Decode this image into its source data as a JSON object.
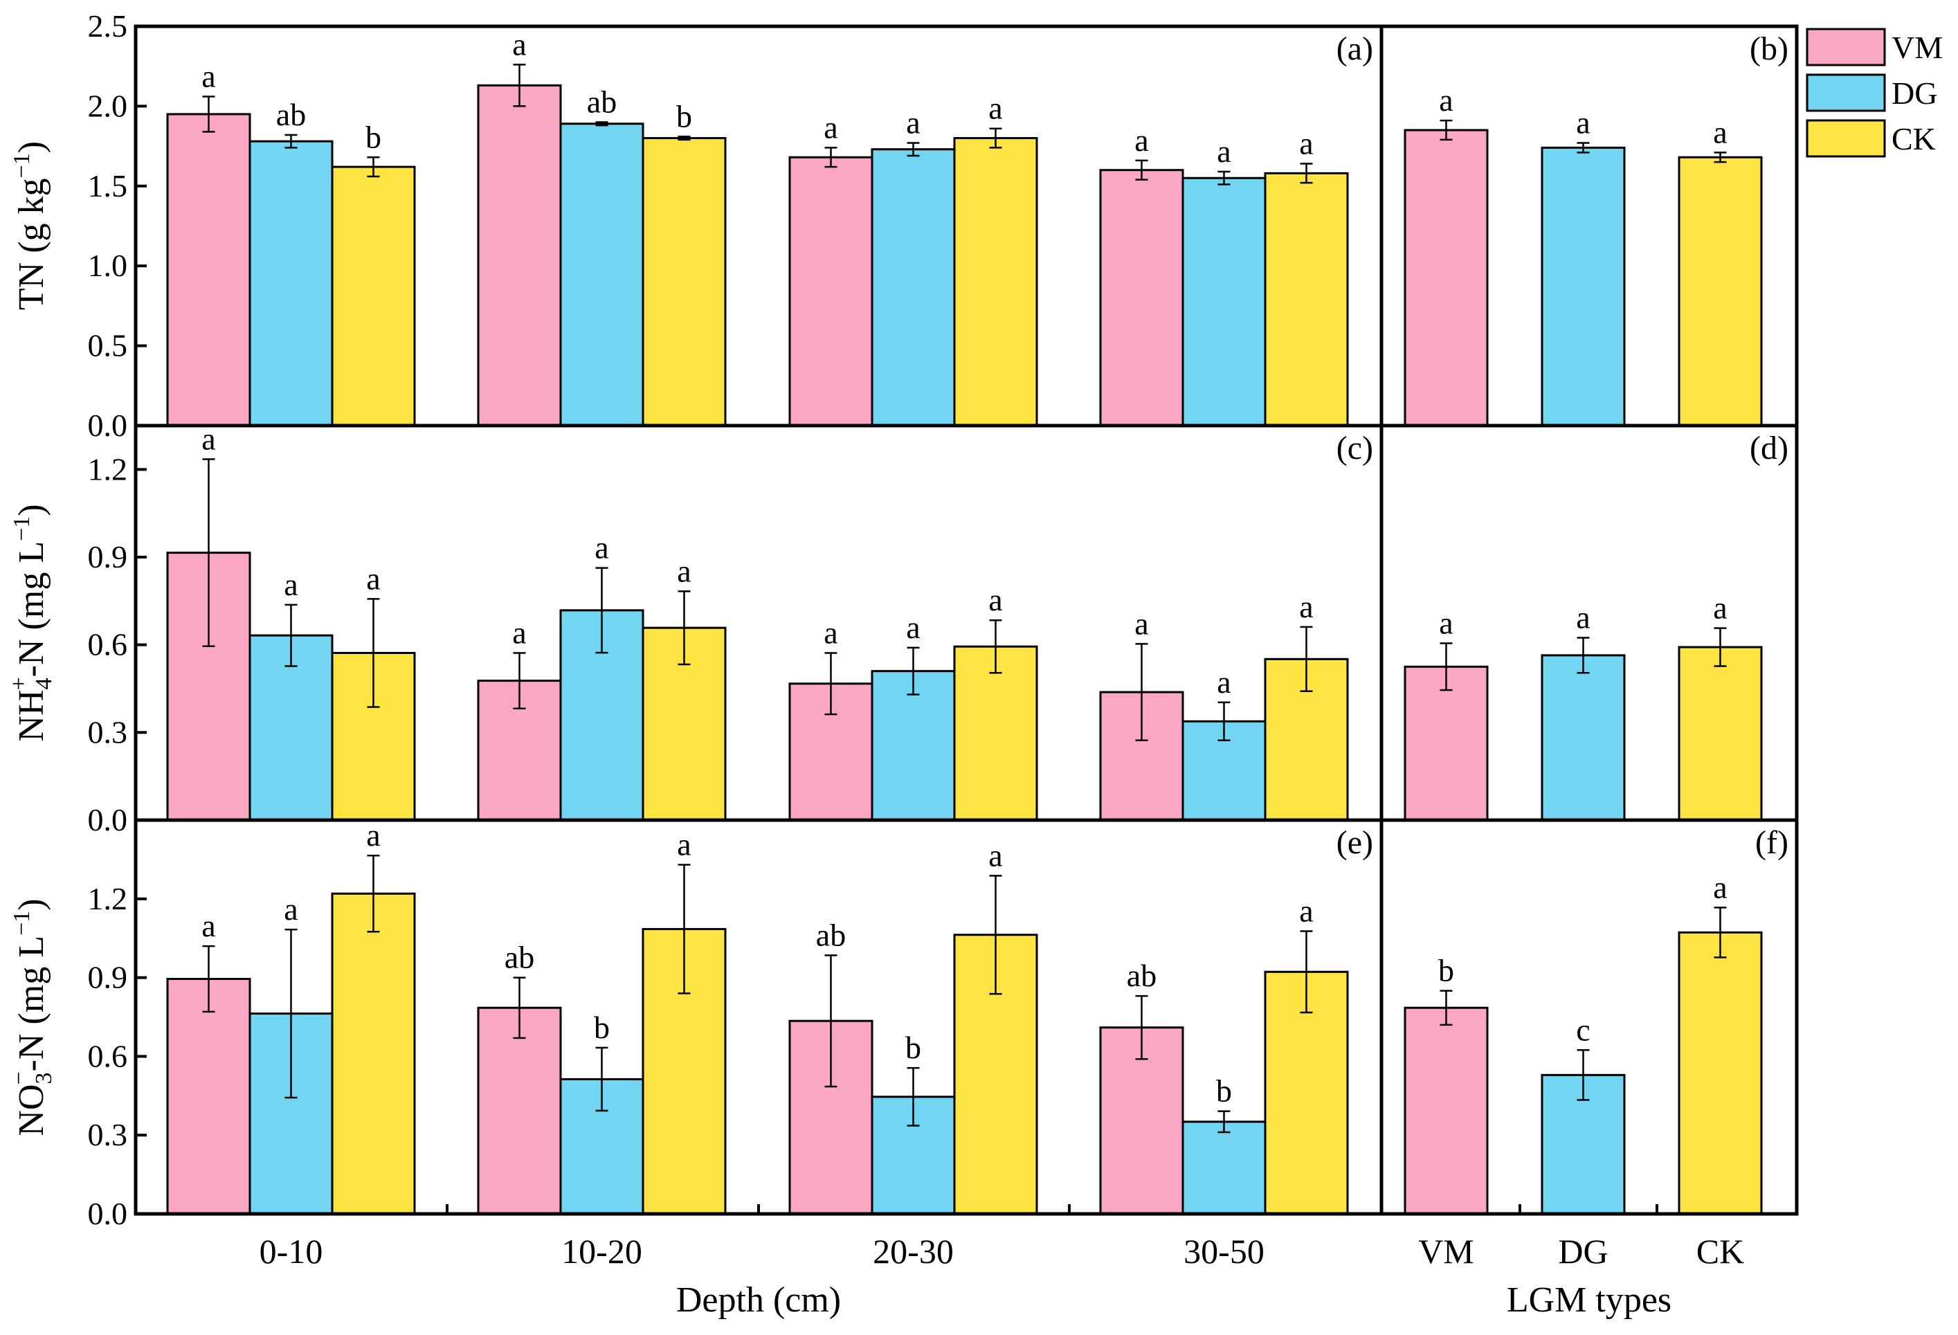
{
  "colors": {
    "VM": "#fba6c2",
    "DG": "#72d6f2",
    "CK": "#fde443"
  },
  "legend": {
    "items": [
      "VM",
      "DG",
      "CK"
    ]
  },
  "axes": {
    "left_xlabel": "Depth (cm)",
    "right_xlabel": "LGM types",
    "depth_categories": [
      "0-10",
      "10-20",
      "20-30",
      "30-50"
    ],
    "type_categories": [
      "VM",
      "DG",
      "CK"
    ]
  },
  "chart_data": [
    {
      "type": "bar",
      "panel": "a",
      "tag": "(a)",
      "ylabel": "TN (g kg⁻¹)",
      "ylim": [
        0,
        2.5
      ],
      "yticks": [
        "0.0",
        "0.5",
        "1.0",
        "1.5",
        "2.0",
        "2.5"
      ],
      "categories": [
        "0-10",
        "10-20",
        "20-30",
        "30-50"
      ],
      "series": [
        {
          "name": "VM",
          "values": [
            1.95,
            2.13,
            1.68,
            1.6
          ],
          "errors": [
            0.11,
            0.13,
            0.06,
            0.06
          ],
          "letters": [
            "a",
            "a",
            "a",
            "a"
          ]
        },
        {
          "name": "DG",
          "values": [
            1.78,
            1.89,
            1.73,
            1.55
          ],
          "errors": [
            0.04,
            0.01,
            0.04,
            0.04
          ],
          "letters": [
            "ab",
            "ab",
            "a",
            "a"
          ]
        },
        {
          "name": "CK",
          "values": [
            1.62,
            1.8,
            1.8,
            1.58
          ],
          "errors": [
            0.06,
            0.01,
            0.06,
            0.06
          ],
          "letters": [
            "b",
            "b",
            "a",
            "a"
          ]
        }
      ]
    },
    {
      "type": "bar",
      "panel": "b",
      "tag": "(b)",
      "ylim": [
        0,
        2.5
      ],
      "categories": [
        "VM",
        "DG",
        "CK"
      ],
      "values": [
        1.85,
        1.74,
        1.68
      ],
      "errors": [
        0.06,
        0.03,
        0.03
      ],
      "letters": [
        "a",
        "a",
        "a"
      ]
    },
    {
      "type": "bar",
      "panel": "c",
      "tag": "(c)",
      "ylabel": "NH₄⁺-N (mg L⁻¹)",
      "ylim": [
        0,
        1.35
      ],
      "yticks": [
        "0.0",
        "0.3",
        "0.6",
        "0.9",
        "1.2"
      ],
      "categories": [
        "0-10",
        "10-20",
        "20-30",
        "30-50"
      ],
      "series": [
        {
          "name": "VM",
          "values": [
            0.915,
            0.477,
            0.467,
            0.438
          ],
          "errors": [
            0.32,
            0.095,
            0.105,
            0.165
          ],
          "letters": [
            "a",
            "a",
            "a",
            "a"
          ]
        },
        {
          "name": "DG",
          "values": [
            0.632,
            0.718,
            0.51,
            0.338
          ],
          "errors": [
            0.105,
            0.145,
            0.08,
            0.065
          ],
          "letters": [
            "a",
            "a",
            "a",
            "a"
          ]
        },
        {
          "name": "CK",
          "values": [
            0.572,
            0.658,
            0.594,
            0.551
          ],
          "errors": [
            0.185,
            0.125,
            0.09,
            0.11
          ],
          "letters": [
            "a",
            "a",
            "a",
            "a"
          ]
        }
      ]
    },
    {
      "type": "bar",
      "panel": "d",
      "tag": "(d)",
      "ylim": [
        0,
        1.35
      ],
      "categories": [
        "VM",
        "DG",
        "CK"
      ],
      "values": [
        0.525,
        0.564,
        0.592
      ],
      "errors": [
        0.08,
        0.06,
        0.065
      ],
      "letters": [
        "a",
        "a",
        "a"
      ]
    },
    {
      "type": "bar",
      "panel": "e",
      "tag": "(e)",
      "ylabel": "NO₃⁻-N (mg L⁻¹)",
      "ylim": [
        0,
        1.5
      ],
      "yticks": [
        "0.0",
        "0.3",
        "0.6",
        "0.9",
        "1.2"
      ],
      "categories": [
        "0-10",
        "10-20",
        "20-30",
        "30-50"
      ],
      "series": [
        {
          "name": "VM",
          "values": [
            0.895,
            0.785,
            0.735,
            0.71
          ],
          "errors": [
            0.125,
            0.115,
            0.25,
            0.12
          ],
          "letters": [
            "a",
            "ab",
            "ab",
            "ab"
          ]
        },
        {
          "name": "DG",
          "values": [
            0.763,
            0.513,
            0.446,
            0.351
          ],
          "errors": [
            0.32,
            0.12,
            0.11,
            0.04
          ],
          "letters": [
            "a",
            "b",
            "b",
            "b"
          ]
        },
        {
          "name": "CK",
          "values": [
            1.22,
            1.085,
            1.063,
            0.922
          ],
          "errors": [
            0.145,
            0.245,
            0.225,
            0.155
          ],
          "letters": [
            "a",
            "a",
            "a",
            "a"
          ]
        }
      ]
    },
    {
      "type": "bar",
      "panel": "f",
      "tag": "(f)",
      "ylim": [
        0,
        1.5
      ],
      "categories": [
        "VM",
        "DG",
        "CK"
      ],
      "values": [
        0.785,
        0.529,
        1.072
      ],
      "errors": [
        0.065,
        0.095,
        0.095
      ],
      "letters": [
        "b",
        "c",
        "a"
      ]
    }
  ]
}
